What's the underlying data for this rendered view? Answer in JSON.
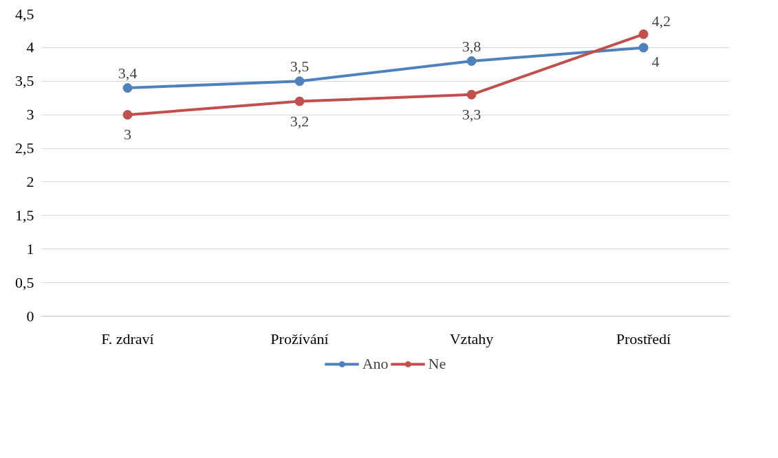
{
  "chart_data": {
    "type": "line",
    "categories": [
      "F. zdraví",
      "Prožívání",
      "Vztahy",
      "Prostředí"
    ],
    "series": [
      {
        "name": "Ano",
        "color": "#4f81bd",
        "values": [
          3.4,
          3.5,
          3.8,
          4
        ],
        "value_labels": [
          "3,4",
          "3,5",
          "3,8",
          "4"
        ]
      },
      {
        "name": "Ne",
        "color": "#c0504d",
        "values": [
          3,
          3.2,
          3.3,
          4.2
        ],
        "value_labels": [
          "3",
          "3,2",
          "3,3",
          "4,2"
        ]
      }
    ],
    "ylim": [
      0,
      4.5
    ],
    "yticks": [
      0,
      {
        "value": 0.5,
        "label": "0,5"
      },
      1,
      {
        "value": 1.5,
        "label": "1,5"
      },
      2,
      {
        "value": 2.5,
        "label": "2,5"
      },
      3,
      {
        "value": 3.5,
        "label": "3,5"
      },
      4,
      {
        "value": 4.5,
        "label": "4,5"
      }
    ],
    "grid": "y",
    "legend": "bottom",
    "marker": "circle",
    "line_style": "solid"
  }
}
